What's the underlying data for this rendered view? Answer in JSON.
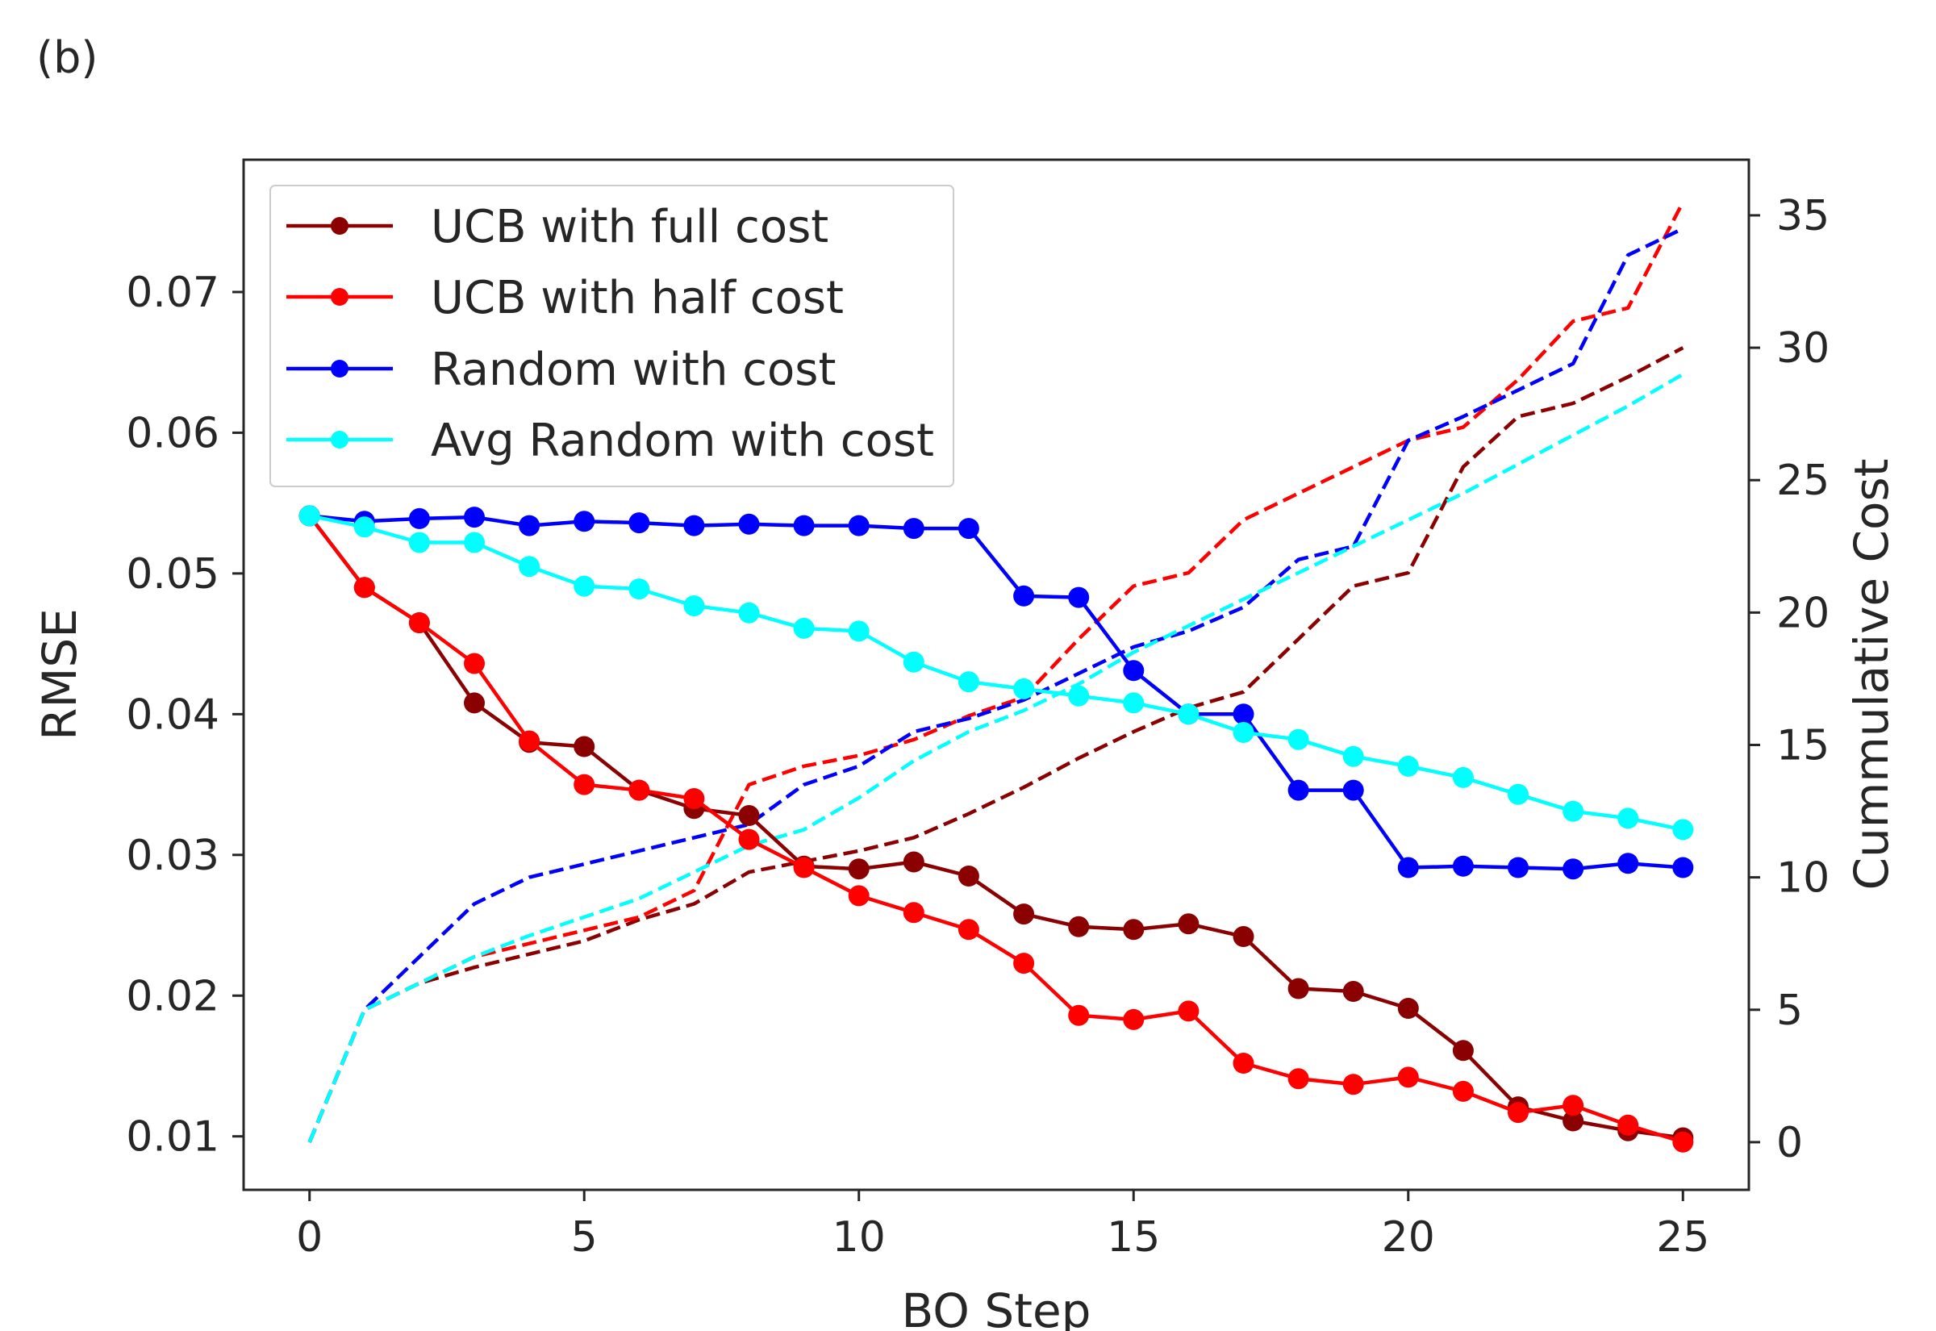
{
  "panel_label": "(b)",
  "chart_data": {
    "type": "line",
    "title": "",
    "xlabel": "BO Step",
    "ylabel": "RMSE",
    "y2label": "Cummulative Cost",
    "xlim": [
      -1.2,
      26.2
    ],
    "ylim": [
      0.0062,
      0.0794
    ],
    "y2lim": [
      -1.8,
      37.1
    ],
    "xticks": [
      0,
      5,
      10,
      15,
      20,
      25
    ],
    "yticks": [
      0.01,
      0.02,
      0.03,
      0.04,
      0.05,
      0.06,
      0.07
    ],
    "yticklabels": [
      "0.01",
      "0.02",
      "0.03",
      "0.04",
      "0.05",
      "0.06",
      "0.07"
    ],
    "y2ticks": [
      0,
      5,
      10,
      15,
      20,
      25,
      30,
      35
    ],
    "grid": false,
    "legend_position": "top-left",
    "x": [
      0,
      1,
      2,
      3,
      4,
      5,
      6,
      7,
      8,
      9,
      10,
      11,
      12,
      13,
      14,
      15,
      16,
      17,
      18,
      19,
      20,
      21,
      22,
      23,
      24,
      25
    ],
    "series": [
      {
        "name": "UCB with full cost",
        "color": "#8b0000",
        "axis": "left",
        "style": "solid-markers",
        "values": [
          0.0541,
          0.049,
          0.0465,
          0.0408,
          0.038,
          0.0377,
          0.0346,
          0.0333,
          0.0328,
          0.0292,
          0.029,
          0.0295,
          0.0285,
          0.0258,
          0.0249,
          0.0247,
          0.0251,
          0.0242,
          0.0205,
          0.0203,
          0.0191,
          0.0161,
          0.0121,
          0.0111,
          0.0104,
          0.0099
        ]
      },
      {
        "name": "UCB with half cost",
        "color": "#ff0000",
        "axis": "left",
        "style": "solid-markers",
        "values": [
          0.0541,
          0.049,
          0.0465,
          0.0436,
          0.0381,
          0.035,
          0.0346,
          0.034,
          0.0311,
          0.0291,
          0.0271,
          0.0259,
          0.0247,
          0.0223,
          0.0186,
          0.0183,
          0.0189,
          0.0152,
          0.0141,
          0.0137,
          0.0142,
          0.0132,
          0.0117,
          0.0122,
          0.0108,
          0.0096
        ]
      },
      {
        "name": "Random with cost",
        "color": "#0000ff",
        "axis": "left",
        "style": "solid-markers",
        "values": [
          0.0541,
          0.0537,
          0.0539,
          0.054,
          0.0534,
          0.0537,
          0.0536,
          0.0534,
          0.0535,
          0.0534,
          0.0534,
          0.0532,
          0.0532,
          0.0484,
          0.0483,
          0.0431,
          0.04,
          0.04,
          0.0346,
          0.0346,
          0.0291,
          0.0292,
          0.0291,
          0.029,
          0.0294,
          0.0291
        ]
      },
      {
        "name": "Avg Random with cost",
        "color": "#00ffff",
        "axis": "left",
        "style": "solid-markers",
        "values": [
          0.0541,
          0.0533,
          0.0522,
          0.0522,
          0.0505,
          0.0491,
          0.0489,
          0.0477,
          0.0472,
          0.0461,
          0.0459,
          0.0437,
          0.0423,
          0.0418,
          0.0413,
          0.0408,
          0.04,
          0.0387,
          0.0382,
          0.037,
          0.0363,
          0.0355,
          0.0343,
          0.0331,
          0.0326,
          0.0318
        ]
      },
      {
        "name": "UCB with full cost",
        "color": "#8b0000",
        "axis": "right",
        "style": "dashed",
        "values": [
          0,
          5.0,
          6.0,
          6.6,
          7.1,
          7.6,
          8.4,
          9.0,
          10.2,
          10.6,
          11.0,
          11.5,
          12.4,
          13.4,
          14.5,
          15.5,
          16.4,
          17.0,
          19.0,
          21.0,
          21.5,
          25.5,
          27.4,
          27.9,
          28.9,
          30.0
        ]
      },
      {
        "name": "UCB with half cost",
        "color": "#ff0000",
        "axis": "right",
        "style": "dashed",
        "values": [
          0,
          5.0,
          6.0,
          7.0,
          7.5,
          8.0,
          8.5,
          9.5,
          13.5,
          14.2,
          14.6,
          15.2,
          16.1,
          16.8,
          19.0,
          21.0,
          21.5,
          23.5,
          24.5,
          25.5,
          26.5,
          27.0,
          28.8,
          31.0,
          31.5,
          35.5
        ]
      },
      {
        "name": "Random with cost",
        "color": "#0000ff",
        "axis": "right",
        "style": "dashed",
        "values": [
          0,
          5.0,
          7.0,
          9.0,
          10.0,
          10.5,
          11.0,
          11.5,
          12.0,
          13.5,
          14.2,
          15.5,
          16.0,
          16.7,
          17.7,
          18.7,
          19.3,
          20.2,
          22.0,
          22.5,
          26.5,
          27.4,
          28.4,
          29.4,
          33.5,
          34.5
        ]
      },
      {
        "name": "Avg Random with cost",
        "color": "#00ffff",
        "axis": "right",
        "style": "dashed",
        "values": [
          0,
          5.0,
          6.0,
          7.0,
          7.8,
          8.5,
          9.2,
          10.2,
          11.2,
          11.8,
          13.0,
          14.4,
          15.5,
          16.3,
          17.3,
          18.5,
          19.5,
          20.5,
          21.5,
          22.5,
          23.5,
          24.5,
          25.6,
          26.7,
          27.8,
          29.0
        ]
      }
    ]
  }
}
